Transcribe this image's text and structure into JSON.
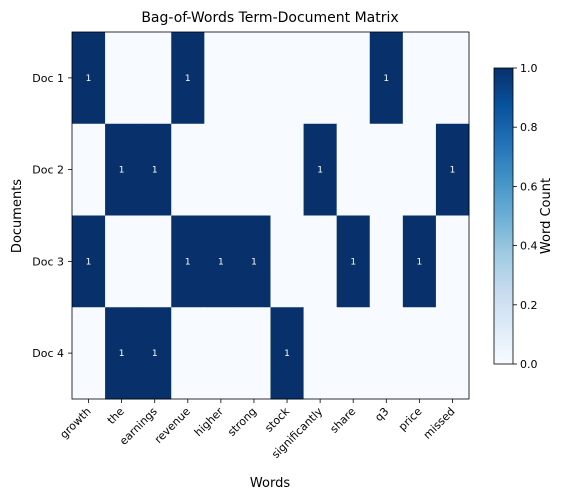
{
  "chart_data": {
    "type": "heatmap",
    "title": "Bag-of-Words Term-Document Matrix",
    "xlabel": "Words",
    "ylabel": "Documents",
    "x_categories": [
      "growth",
      "the",
      "earnings",
      "revenue",
      "higher",
      "strong",
      "stock",
      "significantly",
      "share",
      "q3",
      "price",
      "missed"
    ],
    "y_categories": [
      "Doc 1",
      "Doc 2",
      "Doc 3",
      "Doc 4"
    ],
    "values": [
      [
        1,
        0,
        0,
        1,
        0,
        0,
        0,
        0,
        0,
        1,
        0,
        0
      ],
      [
        0,
        1,
        1,
        0,
        0,
        0,
        0,
        1,
        0,
        0,
        0,
        1
      ],
      [
        1,
        0,
        0,
        1,
        1,
        1,
        0,
        0,
        1,
        0,
        1,
        0
      ],
      [
        0,
        1,
        1,
        0,
        0,
        0,
        1,
        0,
        0,
        0,
        0,
        0
      ]
    ],
    "show_value_labels_for_nonzero": true,
    "colormap": "Blues",
    "colorbar": {
      "label": "Word Count",
      "range": [
        0.0,
        1.0
      ],
      "ticks": [
        "0.0",
        "0.2",
        "0.4",
        "0.6",
        "0.8",
        "1.0"
      ]
    },
    "colors": {
      "low": "#f7fbff",
      "high": "#08306b",
      "label_on_dark": "#ffffff"
    },
    "grid": false
  }
}
